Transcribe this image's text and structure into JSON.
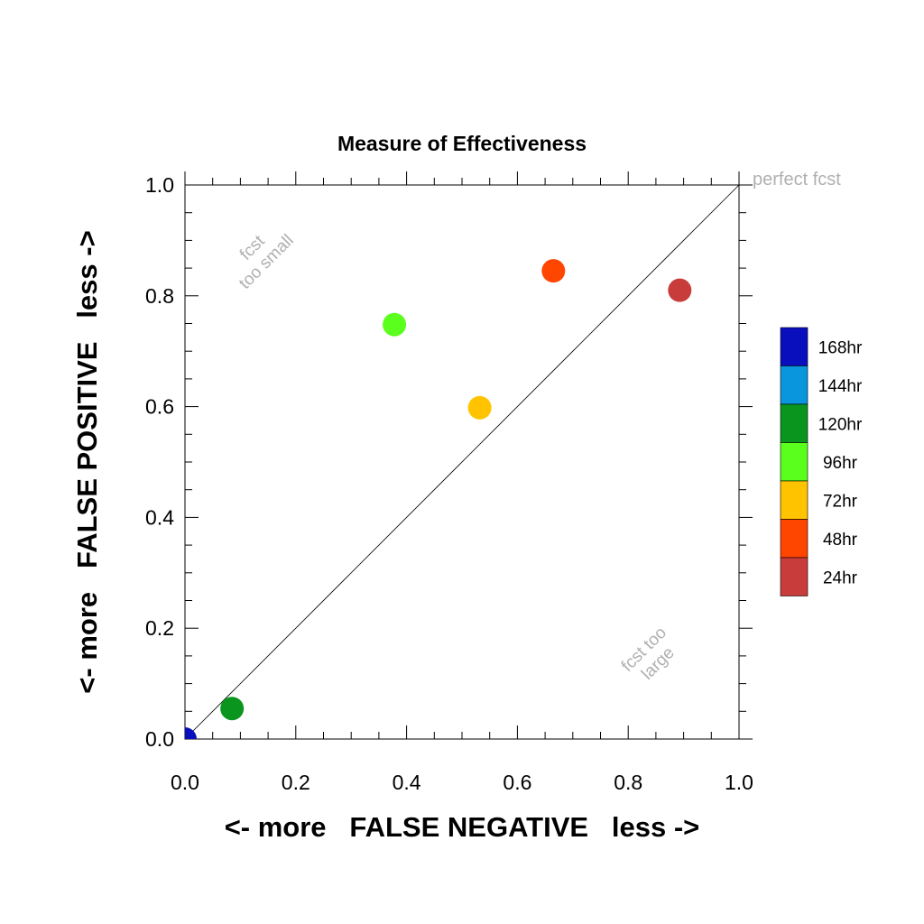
{
  "chart_data": {
    "type": "scatter",
    "title": "Measure of Effectiveness",
    "xlabel": "<- more   FALSE NEGATIVE   less ->",
    "ylabel": "<- more   FALSE POSITIVE   less ->",
    "xlim": [
      0.0,
      1.0
    ],
    "ylim": [
      0.0,
      1.0
    ],
    "xticks": [
      "0.0",
      "0.2",
      "0.4",
      "0.6",
      "0.8",
      "1.0"
    ],
    "yticks": [
      "0.0",
      "0.2",
      "0.4",
      "0.6",
      "0.8",
      "1.0"
    ],
    "diagonal_line": true,
    "annotations": {
      "perfect": "perfect fcst",
      "too_small_1": "fcst",
      "too_small_2": "too small",
      "too_large_1": "fcst too",
      "too_large_2": "large"
    },
    "legend_position": "right",
    "legend": [
      {
        "label": "168hr",
        "color": "#0a0fbe"
      },
      {
        "label": "144hr",
        "color": "#0a96dc"
      },
      {
        "label": "120hr",
        "color": "#0a961e"
      },
      {
        "label": "96hr",
        "color": "#5aff1e"
      },
      {
        "label": "72hr",
        "color": "#ffc300"
      },
      {
        "label": "48hr",
        "color": "#ff4600"
      },
      {
        "label": "24hr",
        "color": "#c83c3c"
      }
    ],
    "points": [
      {
        "lead": "168hr",
        "x": 0.0,
        "y": 0.0,
        "color": "#0a0fbe"
      },
      {
        "lead": "120hr",
        "x": 0.085,
        "y": 0.055,
        "color": "#0a961e"
      },
      {
        "lead": "96hr",
        "x": 0.378,
        "y": 0.748,
        "color": "#5aff1e"
      },
      {
        "lead": "72hr",
        "x": 0.532,
        "y": 0.598,
        "color": "#ffc300"
      },
      {
        "lead": "48hr",
        "x": 0.665,
        "y": 0.845,
        "color": "#ff4600"
      },
      {
        "lead": "24hr",
        "x": 0.893,
        "y": 0.81,
        "color": "#c83c3c"
      }
    ]
  }
}
